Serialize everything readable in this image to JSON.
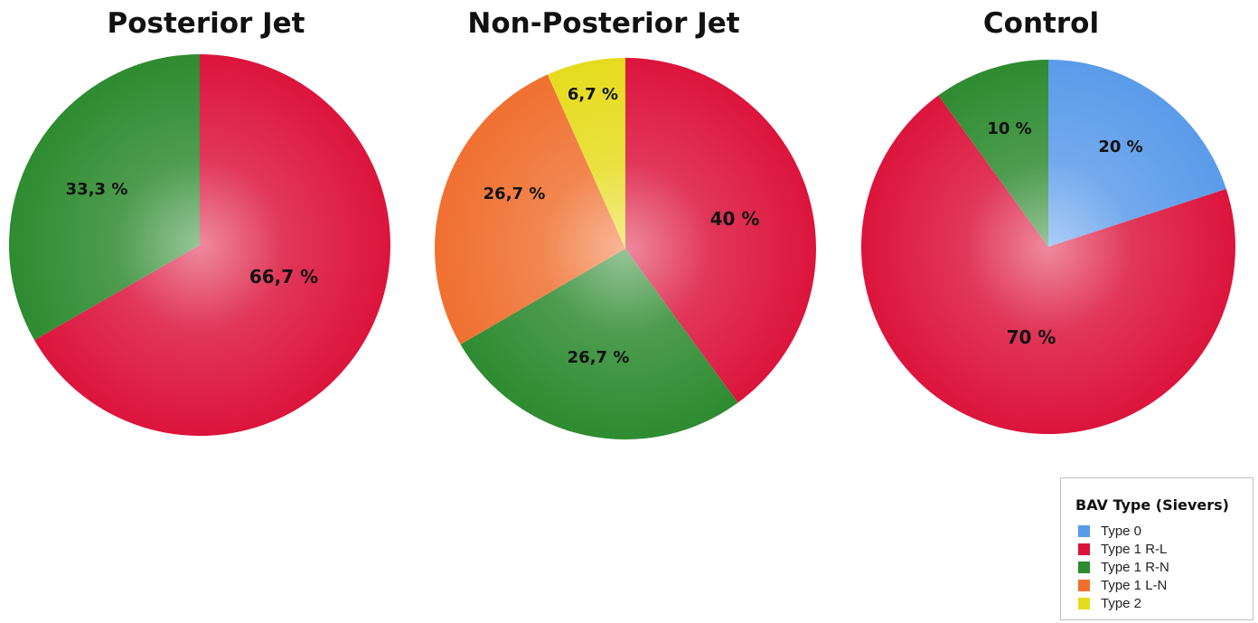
{
  "legend": {
    "title": "BAV Type (Sievers)",
    "items": [
      {
        "label": "Type 0",
        "color": "#5a9bea"
      },
      {
        "label": "Type 1 R-L",
        "color": "#dc143c"
      },
      {
        "label": "Type 1 R-N",
        "color": "#2e8b30"
      },
      {
        "label": "Type 1 L-N",
        "color": "#f07030"
      },
      {
        "label": "Type 2",
        "color": "#e6dc1e"
      }
    ]
  },
  "chart_data": [
    {
      "type": "pie",
      "title": "Posterior Jet",
      "start": "12 o'clock",
      "direction": "clockwise",
      "slices": [
        {
          "category": "Type 1 R-L",
          "value": 66.7,
          "label": "66,7 %"
        },
        {
          "category": "Type 1 R-N",
          "value": 33.3,
          "label": "33,3 %"
        }
      ]
    },
    {
      "type": "pie",
      "title": "Non-Posterior Jet",
      "start": "12 o'clock",
      "direction": "clockwise",
      "slices": [
        {
          "category": "Type 1 R-L",
          "value": 40,
          "label": "40 %"
        },
        {
          "category": "Type 1 R-N",
          "value": 26.7,
          "label": "26,7 %"
        },
        {
          "category": "Type 1 L-N",
          "value": 26.7,
          "label": "26,7 %"
        },
        {
          "category": "Type 2",
          "value": 6.7,
          "label": "6,7 %"
        }
      ]
    },
    {
      "type": "pie",
      "title": "Control",
      "start": "12 o'clock",
      "direction": "clockwise",
      "slices": [
        {
          "category": "Type 0",
          "value": 20,
          "label": "20 %"
        },
        {
          "category": "Type 1 R-L",
          "value": 70,
          "label": "70 %"
        },
        {
          "category": "Type 1 R-N",
          "value": 10,
          "label": "10 %"
        }
      ]
    }
  ]
}
